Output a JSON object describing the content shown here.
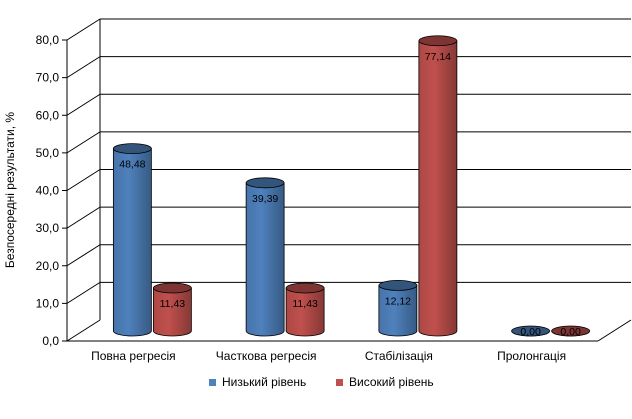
{
  "chart_data": {
    "type": "bar",
    "categories": [
      "Повна регресія",
      "Часткова регресія",
      "Стабілізація",
      "Пролонгація"
    ],
    "series": [
      {
        "name": "Низький рівень",
        "values": [
          48.48,
          39.39,
          12.12,
          0.0
        ],
        "labels": [
          "48,48",
          "39,39",
          "12,12",
          "0,00"
        ],
        "color": "#4f81bd"
      },
      {
        "name": "Високий рівень",
        "values": [
          11.43,
          11.43,
          77.14,
          0.0
        ],
        "labels": [
          "11,43",
          "11,43",
          "77,14",
          "0,00"
        ],
        "color": "#c0504d"
      }
    ],
    "ylabel": "Безпосередні результати, %",
    "xlabel": "",
    "ylim": [
      0,
      80
    ],
    "yticks": [
      "0,0",
      "10,0",
      "20,0",
      "30,0",
      "40,0",
      "50,0",
      "60,0",
      "70,0",
      "80,0"
    ],
    "grid": true,
    "legend": "bottom",
    "style": "3d-cylinder"
  }
}
